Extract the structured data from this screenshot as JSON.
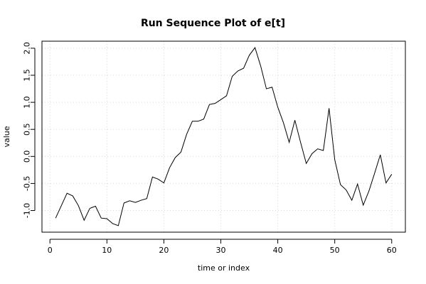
{
  "chart_data": {
    "type": "line",
    "title": "Run Sequence Plot of e[t]",
    "xlabel": "time or index",
    "ylabel": "value",
    "xlim": [
      -1.4,
      62.4
    ],
    "ylim": [
      -1.4,
      2.13
    ],
    "xticks": [
      0,
      10,
      20,
      30,
      40,
      50,
      60
    ],
    "xtick_labels": [
      "0",
      "10",
      "20",
      "30",
      "40",
      "50",
      "60"
    ],
    "yticks": [
      -1.0,
      -0.5,
      0.0,
      0.5,
      1.0,
      1.5,
      2.0
    ],
    "ytick_labels": [
      "-1.0",
      "-0.5",
      "0.0",
      "0.5",
      "1.0",
      "1.5",
      "2.0"
    ],
    "grid": true,
    "series": [
      {
        "x": [
          1,
          2,
          3,
          4,
          5,
          6,
          7,
          8,
          9,
          10,
          11,
          12,
          13,
          14,
          15,
          16,
          17,
          18,
          19,
          20,
          21,
          22,
          23,
          24,
          25,
          26,
          27,
          28,
          29,
          30,
          31,
          32,
          33,
          34,
          35,
          36,
          37,
          38,
          39,
          40,
          41,
          42,
          43,
          44,
          45,
          46,
          47,
          48,
          49,
          50,
          51,
          52,
          53,
          54,
          55,
          56,
          57,
          58,
          59,
          60
        ],
        "values": [
          -1.14,
          -0.91,
          -0.68,
          -0.73,
          -0.91,
          -1.18,
          -0.96,
          -0.92,
          -1.14,
          -1.15,
          -1.24,
          -1.28,
          -0.86,
          -0.82,
          -0.85,
          -0.81,
          -0.78,
          -0.38,
          -0.42,
          -0.49,
          -0.21,
          -0.02,
          0.08,
          0.41,
          0.65,
          0.65,
          0.69,
          0.96,
          0.98,
          1.05,
          1.12,
          1.48,
          1.58,
          1.63,
          1.87,
          2.01,
          1.67,
          1.25,
          1.28,
          0.91,
          0.62,
          0.26,
          0.67,
          0.26,
          -0.13,
          0.05,
          0.14,
          0.11,
          0.89,
          -0.06,
          -0.52,
          -0.62,
          -0.81,
          -0.51,
          -0.9,
          -0.64,
          -0.31,
          0.03,
          -0.49,
          -0.33
        ]
      }
    ]
  }
}
